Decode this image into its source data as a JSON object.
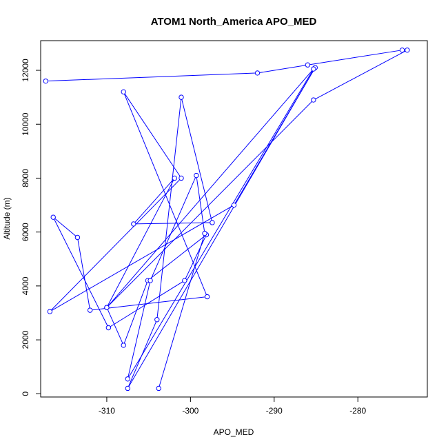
{
  "chart_data": {
    "type": "line",
    "title": "ATOM1 North_America APO_MED",
    "xlabel": "APO_MED",
    "ylabel": "Altitude (m)",
    "xlim": [
      -317.9,
      -271.7
    ],
    "ylim": [
      -120,
      13100
    ],
    "xticks": [
      -310,
      -300,
      -290,
      -280
    ],
    "yticks": [
      0,
      2000,
      4000,
      6000,
      8000,
      10000,
      12000
    ],
    "grid": false,
    "markers": "open-circle",
    "color": "#0000ff",
    "series": [
      {
        "x": [
          -317.3,
          -292.0,
          -286.0,
          -274.7,
          -274.1,
          -285.3,
          -310.0,
          -308.0,
          -305.1,
          -298.1,
          -300.7,
          -309.8,
          -316.4,
          -313.5,
          -312.0,
          -298.0,
          -308.0,
          -301.1,
          -316.8,
          -294.8,
          -285.1,
          -307.5,
          -304.0,
          -301.1,
          -297.4,
          -306.8,
          -301.9,
          -310.0,
          -285.3,
          -307.5,
          -304.8,
          -299.3,
          -298.3,
          -303.8
        ],
        "y": [
          11600,
          11900,
          12200,
          12750,
          12750,
          10900,
          3200,
          1800,
          4200,
          5900,
          4200,
          2450,
          6550,
          5800,
          3100,
          3600,
          11200,
          8000,
          3050,
          7000,
          12100,
          200,
          2750,
          11000,
          6350,
          6300,
          8000,
          3200,
          12050,
          550,
          4200,
          8100,
          5950,
          200
        ]
      }
    ]
  }
}
